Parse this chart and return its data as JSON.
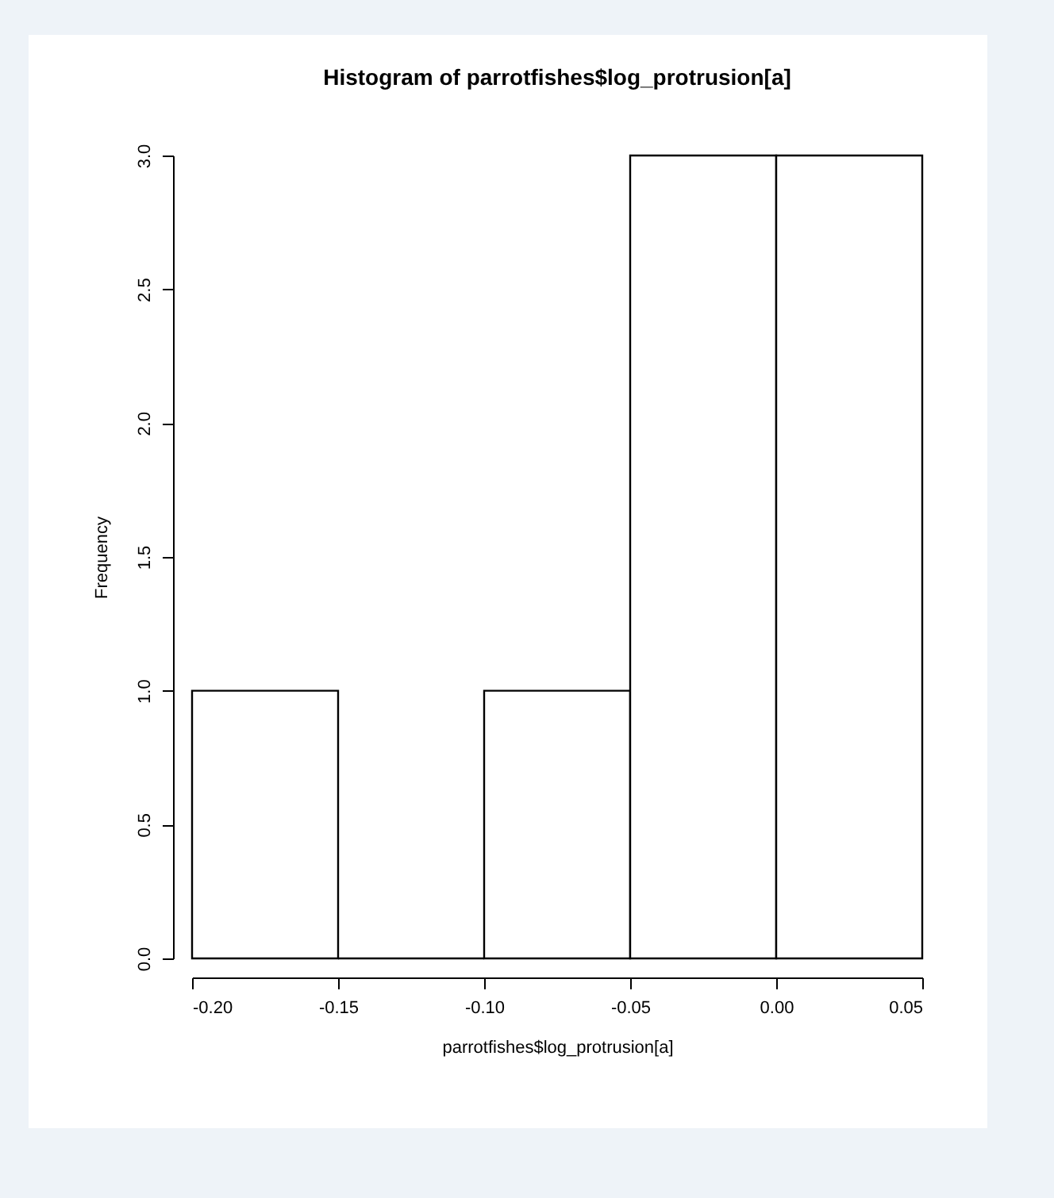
{
  "chart_data": {
    "type": "histogram",
    "title": "Histogram of parrotfishes$log_protrusion[a]",
    "xlabel": "parrotfishes$log_protrusion[a]",
    "ylabel": "Frequency",
    "bins": [
      -0.2,
      -0.15,
      -0.1,
      -0.05,
      0,
      0.05
    ],
    "values": [
      1,
      0,
      1,
      3,
      3
    ],
    "xlim": [
      -0.2,
      0.05
    ],
    "xticks": [
      {
        "value": -0.2,
        "label": "-0.20"
      },
      {
        "value": -0.15,
        "label": "-0.15"
      },
      {
        "value": -0.1,
        "label": "-0.10"
      },
      {
        "value": -0.05,
        "label": "-0.05"
      },
      {
        "value": 0,
        "label": "0.00"
      },
      {
        "value": 0.05,
        "label": "0.05"
      }
    ],
    "ylim": [
      0,
      3
    ],
    "yticks": [
      {
        "value": 0,
        "label": "0.0"
      },
      {
        "value": 0.5,
        "label": "0.5"
      },
      {
        "value": 1,
        "label": "1.0"
      },
      {
        "value": 1.5,
        "label": "1.5"
      },
      {
        "value": 2,
        "label": "2.0"
      },
      {
        "value": 2.5,
        "label": "2.5"
      },
      {
        "value": 3,
        "label": "3.0"
      }
    ],
    "grid": false
  }
}
